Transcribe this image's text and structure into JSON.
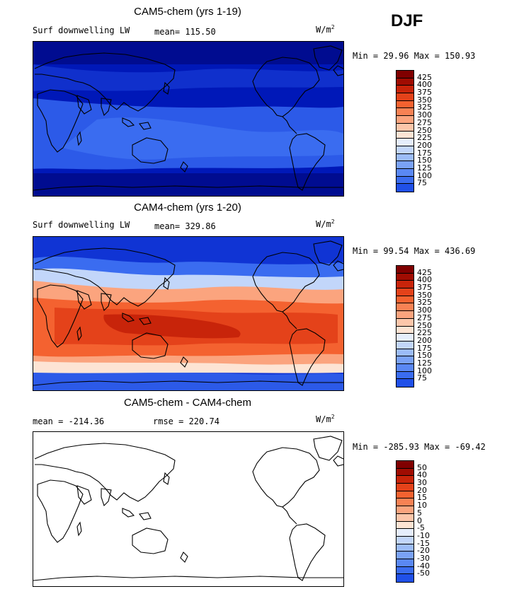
{
  "season": "DJF",
  "colors": [
    "#000080",
    "#0018b8",
    "#1034d4",
    "#2050e8",
    "#3a6cf0",
    "#5a88f4",
    "#7aa2f6",
    "#9cbcf8",
    "#c2d6fa",
    "#e6eefc",
    "#fde4d4",
    "#fcc6aa",
    "#fba47e",
    "#f88254",
    "#f46230",
    "#e4421a",
    "#c8240a",
    "#a00c02",
    "#800000"
  ],
  "panels": [
    {
      "title": "CAM5-chem (yrs 1-19)",
      "left_label": "Surf downwelling LW",
      "mid_label": "mean= 115.50",
      "units_base": "W/m",
      "units_exp": "2",
      "minmax": "Min =  29.96 Max = 150.93",
      "levels": [
        "425",
        "400",
        "375",
        "350",
        "325",
        "300",
        "275",
        "250",
        "225",
        "200",
        "175",
        "150",
        "125",
        "100",
        "75"
      ]
    },
    {
      "title": "CAM4-chem (yrs 1-20)",
      "left_label": "Surf downwelling LW",
      "mid_label": "mean= 329.86",
      "units_base": "W/m",
      "units_exp": "2",
      "minmax": "Min =  99.54 Max = 436.69",
      "levels": [
        "425",
        "400",
        "375",
        "350",
        "325",
        "300",
        "275",
        "250",
        "225",
        "200",
        "175",
        "150",
        "125",
        "100",
        "75"
      ]
    },
    {
      "title": "CAM5-chem - CAM4-chem",
      "left_label": "mean = -214.36",
      "mid_label": "rmse = 220.74",
      "units_base": "W/m",
      "units_exp": "2",
      "minmax": "Min = -285.93 Max = -69.42",
      "levels": [
        "50",
        "40",
        "30",
        "20",
        "15",
        "10",
        "5",
        "0",
        "-5",
        "-10",
        "-15",
        "-20",
        "-30",
        "-40",
        "-50"
      ]
    }
  ]
}
